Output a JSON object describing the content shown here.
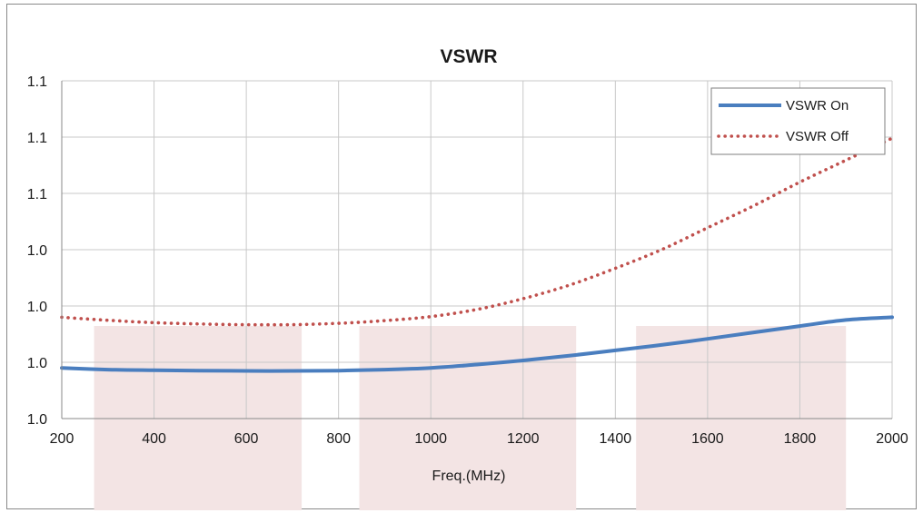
{
  "chart_data": {
    "type": "line",
    "title": "VSWR",
    "xlabel": "Freq.(MHz)",
    "ylabel": "",
    "xlim": [
      200,
      2000
    ],
    "x_ticks": [
      "200",
      "400",
      "600",
      "800",
      "1000",
      "1200",
      "1400",
      "1600",
      "1800",
      "2000"
    ],
    "y_tick_labels": [
      "1.0",
      "1.0",
      "1.0",
      "1.0",
      "1.1",
      "1.1",
      "1.1"
    ],
    "grid": true,
    "legend_position": "top-right",
    "shaded_bands": [
      {
        "x_start": 270,
        "x_end": 720
      },
      {
        "x_start": 845,
        "x_end": 1315
      },
      {
        "x_start": 1445,
        "x_end": 1900
      }
    ],
    "series": [
      {
        "name": "VSWR On",
        "style": "solid",
        "color": "#4a7ebf",
        "x": [
          200,
          300,
          400,
          500,
          600,
          700,
          800,
          900,
          1000,
          1100,
          1200,
          1300,
          1400,
          1500,
          1600,
          1700,
          1800,
          1900,
          2000
        ],
        "y": [
          1.015,
          1.0145,
          1.0143,
          1.0142,
          1.0141,
          1.0141,
          1.0142,
          1.0145,
          1.015,
          1.016,
          1.0172,
          1.0186,
          1.0202,
          1.0218,
          1.0236,
          1.0255,
          1.0274,
          1.0292,
          1.03
        ]
      },
      {
        "name": "VSWR Off",
        "style": "dotted",
        "color": "#c0504d",
        "x": [
          200,
          300,
          400,
          500,
          600,
          700,
          800,
          900,
          1000,
          1100,
          1200,
          1300,
          1400,
          1500,
          1600,
          1700,
          1800,
          1900,
          2000
        ],
        "y": [
          1.03,
          1.0291,
          1.0284,
          1.028,
          1.0278,
          1.0278,
          1.0282,
          1.029,
          1.0302,
          1.0323,
          1.0355,
          1.0395,
          1.0445,
          1.05,
          1.0565,
          1.063,
          1.07,
          1.0765,
          1.083
        ]
      }
    ]
  }
}
